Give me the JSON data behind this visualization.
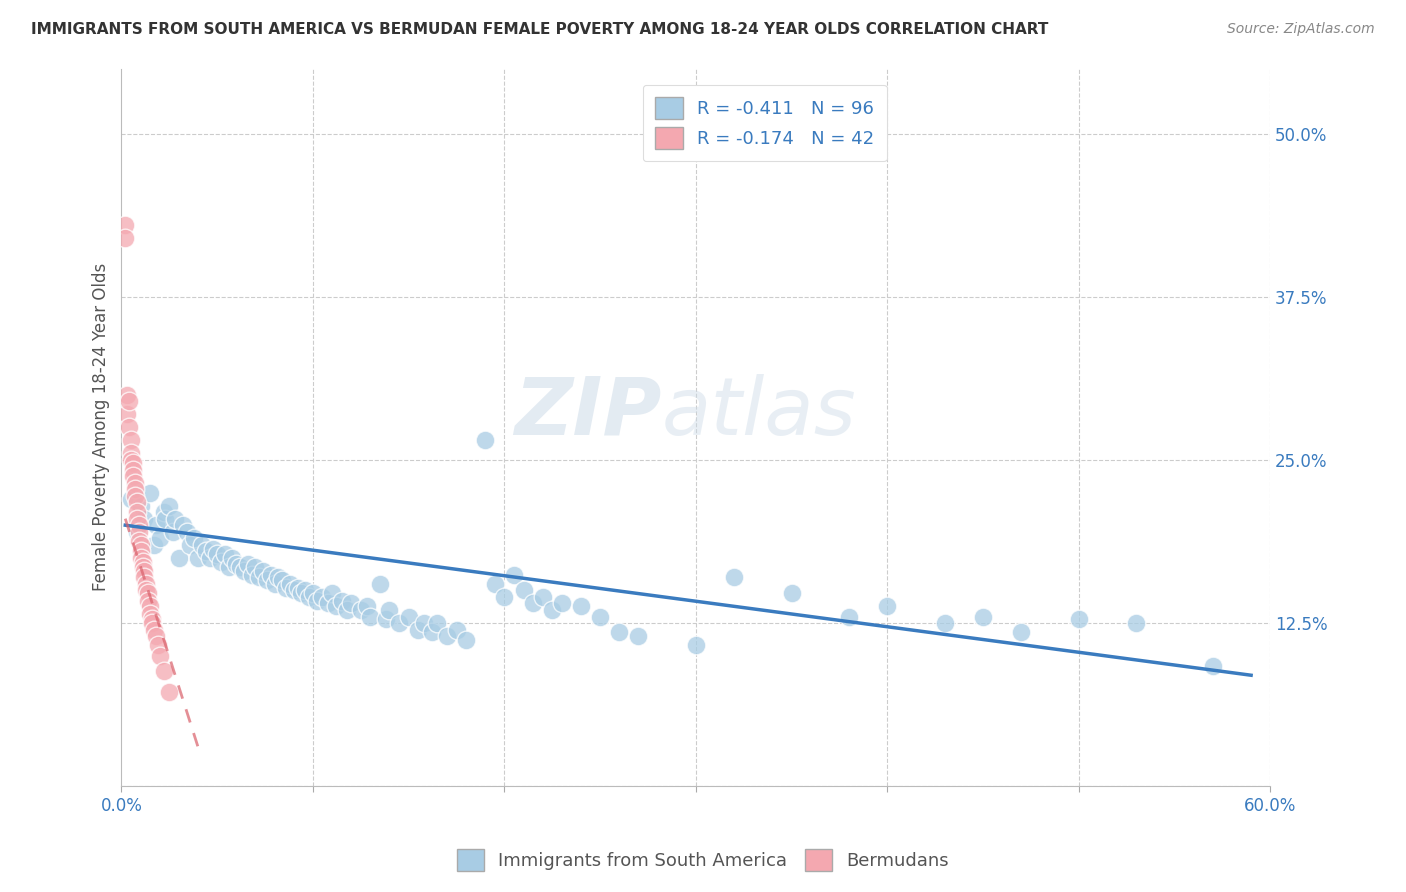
{
  "title": "IMMIGRANTS FROM SOUTH AMERICA VS BERMUDAN FEMALE POVERTY AMONG 18-24 YEAR OLDS CORRELATION CHART",
  "source": "Source: ZipAtlas.com",
  "ylabel": "Female Poverty Among 18-24 Year Olds",
  "xlim": [
    0.0,
    0.6
  ],
  "ylim": [
    0.0,
    0.55
  ],
  "x_tick_positions": [
    0.0,
    0.1,
    0.2,
    0.3,
    0.4,
    0.5,
    0.6
  ],
  "x_tick_labels": [
    "0.0%",
    "",
    "",
    "",
    "",
    "",
    "60.0%"
  ],
  "y_ticks_right": [
    0.0,
    0.125,
    0.25,
    0.375,
    0.5
  ],
  "y_tick_labels_right": [
    "",
    "12.5%",
    "25.0%",
    "37.5%",
    "50.0%"
  ],
  "blue_R": -0.411,
  "blue_N": 96,
  "pink_R": -0.174,
  "pink_N": 42,
  "blue_color": "#a8cce4",
  "pink_color": "#f4a8b0",
  "blue_line_color": "#3a7bbf",
  "pink_line_color": "#d9606a",
  "grid_color": "#cccccc",
  "watermark": "ZIPatlas",
  "legend_label_blue": "Immigrants from South America",
  "legend_label_pink": "Bermudans",
  "blue_points_x": [
    0.005,
    0.008,
    0.01,
    0.012,
    0.015,
    0.017,
    0.018,
    0.02,
    0.022,
    0.023,
    0.025,
    0.027,
    0.028,
    0.03,
    0.032,
    0.034,
    0.036,
    0.038,
    0.04,
    0.042,
    0.044,
    0.046,
    0.048,
    0.05,
    0.052,
    0.054,
    0.056,
    0.058,
    0.06,
    0.062,
    0.064,
    0.066,
    0.068,
    0.07,
    0.072,
    0.074,
    0.076,
    0.078,
    0.08,
    0.082,
    0.084,
    0.086,
    0.088,
    0.09,
    0.092,
    0.094,
    0.096,
    0.098,
    0.1,
    0.102,
    0.105,
    0.108,
    0.11,
    0.112,
    0.115,
    0.118,
    0.12,
    0.125,
    0.128,
    0.13,
    0.135,
    0.138,
    0.14,
    0.145,
    0.15,
    0.155,
    0.158,
    0.162,
    0.165,
    0.17,
    0.175,
    0.18,
    0.19,
    0.195,
    0.2,
    0.205,
    0.21,
    0.215,
    0.22,
    0.225,
    0.23,
    0.24,
    0.25,
    0.26,
    0.27,
    0.3,
    0.32,
    0.35,
    0.38,
    0.4,
    0.43,
    0.45,
    0.47,
    0.5,
    0.53,
    0.57
  ],
  "blue_points_y": [
    0.22,
    0.195,
    0.215,
    0.205,
    0.225,
    0.185,
    0.2,
    0.19,
    0.21,
    0.205,
    0.215,
    0.195,
    0.205,
    0.175,
    0.2,
    0.195,
    0.185,
    0.19,
    0.175,
    0.185,
    0.18,
    0.175,
    0.182,
    0.178,
    0.172,
    0.178,
    0.168,
    0.175,
    0.17,
    0.168,
    0.165,
    0.17,
    0.162,
    0.168,
    0.16,
    0.165,
    0.158,
    0.162,
    0.155,
    0.16,
    0.158,
    0.152,
    0.155,
    0.15,
    0.152,
    0.148,
    0.15,
    0.145,
    0.148,
    0.142,
    0.145,
    0.14,
    0.148,
    0.138,
    0.142,
    0.135,
    0.14,
    0.135,
    0.138,
    0.13,
    0.155,
    0.128,
    0.135,
    0.125,
    0.13,
    0.12,
    0.125,
    0.118,
    0.125,
    0.115,
    0.12,
    0.112,
    0.265,
    0.155,
    0.145,
    0.162,
    0.15,
    0.14,
    0.145,
    0.135,
    0.14,
    0.138,
    0.13,
    0.118,
    0.115,
    0.108,
    0.16,
    0.148,
    0.13,
    0.138,
    0.125,
    0.13,
    0.118,
    0.128,
    0.125,
    0.092
  ],
  "pink_points_x": [
    0.002,
    0.002,
    0.003,
    0.003,
    0.004,
    0.004,
    0.005,
    0.005,
    0.005,
    0.006,
    0.006,
    0.006,
    0.007,
    0.007,
    0.007,
    0.008,
    0.008,
    0.008,
    0.009,
    0.009,
    0.009,
    0.01,
    0.01,
    0.01,
    0.011,
    0.011,
    0.012,
    0.012,
    0.013,
    0.013,
    0.014,
    0.014,
    0.015,
    0.015,
    0.016,
    0.016,
    0.017,
    0.018,
    0.019,
    0.02,
    0.022,
    0.025
  ],
  "pink_points_y": [
    0.43,
    0.42,
    0.3,
    0.285,
    0.295,
    0.275,
    0.265,
    0.255,
    0.25,
    0.248,
    0.242,
    0.238,
    0.232,
    0.228,
    0.222,
    0.218,
    0.21,
    0.205,
    0.2,
    0.195,
    0.188,
    0.185,
    0.18,
    0.175,
    0.172,
    0.168,
    0.165,
    0.16,
    0.155,
    0.15,
    0.148,
    0.142,
    0.138,
    0.132,
    0.128,
    0.125,
    0.12,
    0.115,
    0.108,
    0.1,
    0.088,
    0.072
  ],
  "blue_line_x": [
    0.002,
    0.59
  ],
  "blue_line_y": [
    0.2,
    0.085
  ],
  "pink_line_x": [
    0.002,
    0.04
  ],
  "pink_line_y": [
    0.205,
    0.03
  ]
}
